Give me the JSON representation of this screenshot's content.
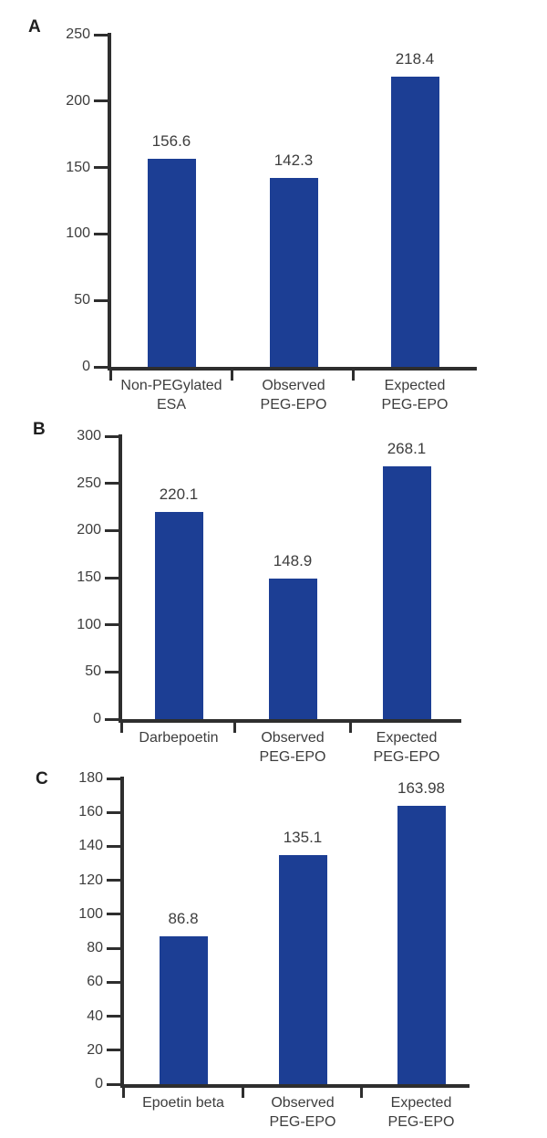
{
  "figure": {
    "bar_color": "#1c3e94",
    "text_color": "#3d3d3d",
    "axis_color": "#2e2e2e",
    "background_color": "#ffffff"
  },
  "chart_data": [
    {
      "type": "bar",
      "panel": "A",
      "categories": [
        [
          "Non-PEGylated",
          "ESA"
        ],
        [
          "Observed",
          "PEG-EPO"
        ],
        [
          "Expected",
          "PEG-EPO"
        ]
      ],
      "values": [
        156.6,
        142.3,
        218.4
      ],
      "value_labels": [
        "156.6",
        "142.3",
        "218.4"
      ],
      "ylim": [
        0,
        250
      ],
      "ytick_step": 50,
      "ytick_labels": [
        "0",
        "50",
        "100",
        "150",
        "200",
        "250"
      ],
      "xlabel": "",
      "ylabel": "",
      "grid": false,
      "legend": "none"
    },
    {
      "type": "bar",
      "panel": "B",
      "categories": [
        [
          "Darbepoetin"
        ],
        [
          "Observed",
          "PEG-EPO"
        ],
        [
          "Expected",
          "PEG-EPO"
        ]
      ],
      "values": [
        220.1,
        148.9,
        268.1
      ],
      "value_labels": [
        "220.1",
        "148.9",
        "268.1"
      ],
      "ylim": [
        0,
        300
      ],
      "ytick_step": 50,
      "ytick_labels": [
        "0",
        "50",
        "100",
        "150",
        "200",
        "250",
        "300"
      ],
      "xlabel": "",
      "ylabel": "",
      "grid": false,
      "legend": "none"
    },
    {
      "type": "bar",
      "panel": "C",
      "categories": [
        [
          "Epoetin beta"
        ],
        [
          "Observed",
          "PEG-EPO"
        ],
        [
          "Expected",
          "PEG-EPO"
        ]
      ],
      "values": [
        86.8,
        135.1,
        163.98
      ],
      "value_labels": [
        "86.8",
        "135.1",
        "163.98"
      ],
      "ylim": [
        0,
        180
      ],
      "ytick_step": 20,
      "ytick_labels": [
        "0",
        "20",
        "40",
        "60",
        "80",
        "100",
        "120",
        "140",
        "160",
        "180"
      ],
      "xlabel": "",
      "ylabel": "",
      "grid": false,
      "legend": "none"
    }
  ]
}
